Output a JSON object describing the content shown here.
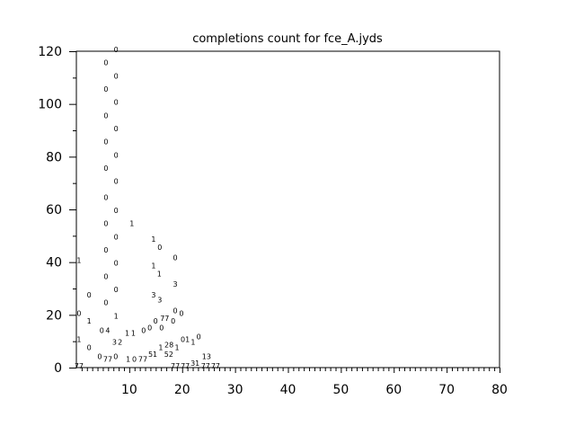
{
  "chart_data": {
    "type": "scatter",
    "title": "completions count for fce_A.jyds",
    "xlabel": "",
    "ylabel": "",
    "xlim": [
      0,
      80
    ],
    "ylim": [
      0,
      120
    ],
    "x_ticks": [
      "10",
      "20",
      "30",
      "40",
      "50",
      "60",
      "70",
      "80"
    ],
    "y_ticks": [
      "0",
      "20",
      "40",
      "60",
      "80",
      "100",
      "120"
    ],
    "grid": false,
    "marker": "text labels",
    "points": [
      {
        "x": 5.6,
        "y": 115,
        "label": "0"
      },
      {
        "x": 5.6,
        "y": 105,
        "label": "0"
      },
      {
        "x": 5.6,
        "y": 95,
        "label": "0"
      },
      {
        "x": 5.6,
        "y": 85,
        "label": "0"
      },
      {
        "x": 5.6,
        "y": 75,
        "label": "0"
      },
      {
        "x": 5.6,
        "y": 64,
        "label": "0"
      },
      {
        "x": 5.6,
        "y": 54,
        "label": "0"
      },
      {
        "x": 5.6,
        "y": 44,
        "label": "0"
      },
      {
        "x": 5.6,
        "y": 34,
        "label": "0"
      },
      {
        "x": 5.6,
        "y": 24,
        "label": "0"
      },
      {
        "x": 7.5,
        "y": 120,
        "label": "0"
      },
      {
        "x": 7.5,
        "y": 110,
        "label": "0"
      },
      {
        "x": 7.5,
        "y": 100,
        "label": "0"
      },
      {
        "x": 7.5,
        "y": 90,
        "label": "0"
      },
      {
        "x": 7.5,
        "y": 80,
        "label": "0"
      },
      {
        "x": 7.5,
        "y": 70,
        "label": "0"
      },
      {
        "x": 7.5,
        "y": 59,
        "label": "0"
      },
      {
        "x": 7.5,
        "y": 49,
        "label": "0"
      },
      {
        "x": 7.5,
        "y": 39,
        "label": "0"
      },
      {
        "x": 7.5,
        "y": 29,
        "label": "0"
      },
      {
        "x": 0.5,
        "y": 40,
        "label": "1"
      },
      {
        "x": 2.4,
        "y": 27,
        "label": "0"
      },
      {
        "x": 0.5,
        "y": 20,
        "label": "0"
      },
      {
        "x": 2.4,
        "y": 17,
        "label": "1"
      },
      {
        "x": 4.8,
        "y": 13.5,
        "label": "0"
      },
      {
        "x": 5.6,
        "y": 13.5,
        "label": "4"
      },
      {
        "x": 7.5,
        "y": 19,
        "label": "1"
      },
      {
        "x": 7.2,
        "y": 9,
        "label": "3"
      },
      {
        "x": 8.1,
        "y": 9,
        "label": "2"
      },
      {
        "x": 0.5,
        "y": 10,
        "label": "1"
      },
      {
        "x": 2.4,
        "y": 7,
        "label": "0"
      },
      {
        "x": 4.4,
        "y": 3.5,
        "label": "0"
      },
      {
        "x": 5.6,
        "y": 2.5,
        "label": "77"
      },
      {
        "x": 6.6,
        "y": 3.5,
        "label": "0"
      },
      {
        "x": 0.5,
        "y": 0,
        "label": "77"
      },
      {
        "x": 10.5,
        "y": 54,
        "label": "1"
      },
      {
        "x": 9.6,
        "y": 12.5,
        "label": "1"
      },
      {
        "x": 10.6,
        "y": 12.5,
        "label": "1"
      },
      {
        "x": 9.8,
        "y": 2.5,
        "label": "1"
      },
      {
        "x": 10.8,
        "y": 2.5,
        "label": "0"
      },
      {
        "x": 12.4,
        "y": 2.5,
        "label": "77"
      },
      {
        "x": 14.6,
        "y": 48,
        "label": "1"
      },
      {
        "x": 15.6,
        "y": 45,
        "label": "0"
      },
      {
        "x": 14.6,
        "y": 38,
        "label": "1"
      },
      {
        "x": 15.5,
        "y": 35,
        "label": "1"
      },
      {
        "x": 14.6,
        "y": 27,
        "label": "3"
      },
      {
        "x": 15.6,
        "y": 25,
        "label": "3"
      },
      {
        "x": 18.7,
        "y": 41,
        "label": "0"
      },
      {
        "x": 18.7,
        "y": 31,
        "label": "3"
      },
      {
        "x": 18.7,
        "y": 21,
        "label": "0"
      },
      {
        "x": 19.7,
        "y": 20,
        "label": "0"
      },
      {
        "x": 12.7,
        "y": 13.5,
        "label": "0"
      },
      {
        "x": 13.7,
        "y": 14.5,
        "label": "0"
      },
      {
        "x": 14.8,
        "y": 17,
        "label": "0"
      },
      {
        "x": 15.6,
        "y": 14.5,
        "label": "0"
      },
      {
        "x": 16.7,
        "y": 18,
        "label": "77"
      },
      {
        "x": 17.6,
        "y": 17,
        "label": "0"
      },
      {
        "x": 18.7,
        "y": 10,
        "label": "01"
      },
      {
        "x": 20.7,
        "y": 9,
        "label": "1"
      },
      {
        "x": 21.6,
        "y": 11,
        "label": "0"
      },
      {
        "x": 14.6,
        "y": 7,
        "label": "1"
      },
      {
        "x": 16.5,
        "y": 8,
        "label": "28"
      },
      {
        "x": 17.5,
        "y": 7,
        "label": "1"
      },
      {
        "x": 13.6,
        "y": 4.5,
        "label": "51"
      },
      {
        "x": 15.6,
        "y": 4.5,
        "label": "52"
      },
      {
        "x": 24.6,
        "y": 3.5,
        "label": "13"
      },
      {
        "x": 18.7,
        "y": 0,
        "label": "77"
      },
      {
        "x": 19.9,
        "y": 0,
        "label": "77"
      },
      {
        "x": 21.6,
        "y": 1,
        "label": "31"
      },
      {
        "x": 22.9,
        "y": 0,
        "label": "77"
      },
      {
        "x": 23.6,
        "y": 0,
        "label": "77"
      }
    ]
  }
}
